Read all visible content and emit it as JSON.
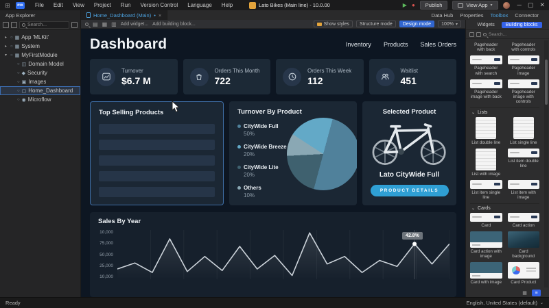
{
  "titlebar": {
    "menus": [
      "File",
      "Edit",
      "View",
      "Project",
      "Run",
      "Version Control",
      "Language",
      "Help"
    ],
    "app_title": "Lato Bikes (Main line) - 10.0.00",
    "publish_label": "Publish",
    "view_app_label": "View App"
  },
  "tabs": {
    "explorer_tab": "App Explorer",
    "page_tab": "Home_Dashboard (Main)",
    "dirty_marker": "•",
    "panel_tabs": [
      "Data Hub",
      "Properties",
      "Toolbox",
      "Connector"
    ],
    "active_panel_tab": "Toolbox"
  },
  "explorer": {
    "search_placeholder": "Search...",
    "items": [
      {
        "label": "App 'MLKit'",
        "level": 0,
        "chevron": "collapsed",
        "icon": "module"
      },
      {
        "label": "System",
        "level": 0,
        "chevron": "collapsed",
        "icon": "module"
      },
      {
        "label": "MyFirstModule",
        "level": 0,
        "chevron": "expanded",
        "icon": "module"
      },
      {
        "label": "Domain Model",
        "level": 1,
        "icon": "domain-model"
      },
      {
        "label": "Security",
        "level": 1,
        "icon": "security"
      },
      {
        "label": "Images",
        "level": 1,
        "icon": "images"
      },
      {
        "label": "Home_Dashboard",
        "level": 1,
        "icon": "page",
        "selected": true
      },
      {
        "label": "Microflow",
        "level": 1,
        "icon": "microflow"
      }
    ]
  },
  "canvas_toolbar": {
    "add_widget": "Add widget...",
    "add_building_block": "Add building block...",
    "show_styles": "Show styles",
    "structure_mode": "Structure mode",
    "design_mode": "Design mode",
    "zoom_level": "100%"
  },
  "page": {
    "title": "Dashboard",
    "nav": [
      "Inventory",
      "Products",
      "Sales Orders"
    ],
    "kpis": [
      {
        "icon": "trend-chart-icon",
        "label": "Turnover",
        "value": "$6.7 M"
      },
      {
        "icon": "shopping-bag-icon",
        "label": "Orders This Month",
        "value": "722"
      },
      {
        "icon": "clock-icon",
        "label": "Orders This Week",
        "value": "112"
      },
      {
        "icon": "users-icon",
        "label": "Waitlist",
        "value": "451"
      }
    ],
    "top_selling": {
      "title": "Top Selling Products",
      "placeholder_rows": 5
    },
    "selected_product": {
      "title": "Selected Product",
      "name": "Lato CityWide Full",
      "button_label": "PRODUCT DETAILS",
      "button_color": "#2f9fd4"
    }
  },
  "chart_data": [
    {
      "type": "pie",
      "title": "Turnover By Product",
      "labels": [
        "CityWide Full",
        "CityWide Breeze 2",
        "CityWide Lite",
        "Others"
      ],
      "values": [
        50,
        20,
        20,
        10
      ],
      "colors": [
        "#50819b",
        "#63a9c7",
        "#3f616f",
        "#8aa8b4"
      ],
      "draw_order": [
        0,
        2,
        3,
        1
      ],
      "start_angle_deg": 15,
      "legend_position": "left"
    },
    {
      "type": "line",
      "title": "Sales By Year",
      "y_tick_labels": [
        "10,000",
        "75,000",
        "50,000",
        "25,000",
        "10,000"
      ],
      "values_thousands": [
        25,
        37,
        18,
        85,
        20,
        50,
        22,
        70,
        25,
        52,
        12,
        97,
        35,
        50,
        18,
        42,
        30,
        75,
        35,
        75
      ],
      "value_range_thousands": [
        10,
        100
      ],
      "annotation": {
        "point_index": 17,
        "label": "42.8%"
      },
      "grid": "vertical",
      "line_color": "#ccd3da"
    }
  ],
  "toolbox": {
    "subtabs": [
      "Widgets",
      "Building blocks"
    ],
    "active_subtab": "Building blocks",
    "search_placeholder": "Search...",
    "sections": [
      {
        "name": "",
        "items": [
          {
            "label": "Pageheader with back",
            "thumb": "none"
          },
          {
            "label": "Pageheader with controls",
            "thumb": "none"
          },
          {
            "label": "Pageheader with search",
            "thumb": "bar"
          },
          {
            "label": "Pageheader image",
            "thumb": "bar"
          },
          {
            "label": "Pageheader image with back",
            "thumb": "bar"
          },
          {
            "label": "Pageheader image with controls",
            "thumb": "bar"
          }
        ]
      },
      {
        "name": "Lists",
        "items": [
          {
            "label": "List double line",
            "thumb": "tall"
          },
          {
            "label": "List single line",
            "thumb": "tall"
          },
          {
            "label": "List with image",
            "thumb": "tall"
          },
          {
            "label": "List item double line",
            "thumb": "bar"
          },
          {
            "label": "List item single line",
            "thumb": "bar"
          },
          {
            "label": "List item with image",
            "thumb": "bar"
          }
        ]
      },
      {
        "name": "Cards",
        "items": [
          {
            "label": "Card",
            "thumb": "bar"
          },
          {
            "label": "Card action",
            "thumb": "bar"
          },
          {
            "label": "Card action with image",
            "thumb": "photobar"
          },
          {
            "label": "Card background",
            "thumb": "photo"
          },
          {
            "label": "Card with image",
            "thumb": "photobar"
          },
          {
            "label": "Card Product",
            "thumb": "product"
          },
          {
            "label": "Card Stats",
            "thumb": "stats"
          },
          {
            "label": "Card Graph",
            "thumb": "graph"
          }
        ]
      }
    ]
  },
  "statusbar": {
    "left": "Ready",
    "right": "English, United States (default)"
  }
}
